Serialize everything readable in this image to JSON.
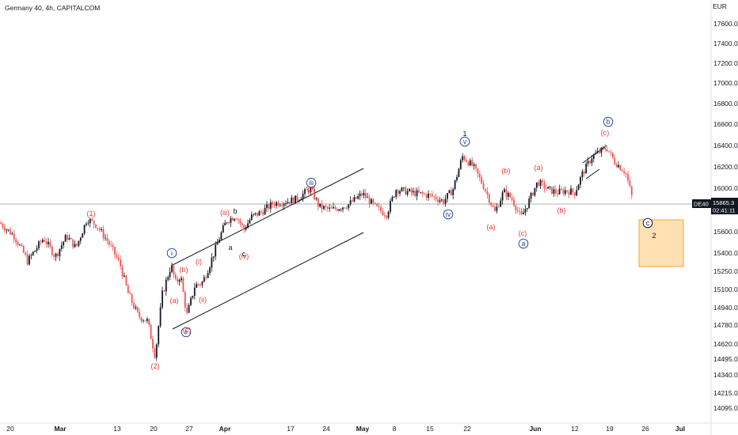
{
  "header": {
    "title": "Germany 40, 4h, CAPITALCOM"
  },
  "chart_data": {
    "type": "candlestick",
    "title": "Germany 40, 4h, CAPITALCOM",
    "symbol": "DE40",
    "currency": "EUR",
    "grid": false,
    "colors": {
      "up": "#131722",
      "down": "#ef5350",
      "wave_red": "#e53935",
      "wave_blue": "#2a4c9c",
      "wave_black": "#131722",
      "price_badge": "#131722",
      "target_box_fill": "#ffe0b2",
      "target_box_stroke": "#f7a233"
    },
    "ylim": [
      13990,
      17730
    ],
    "y_ticks": [
      "17600.0",
      "17400.0",
      "17200.0",
      "17000.0",
      "16800.0",
      "16600.0",
      "16400.0",
      "16200.0",
      "16000.0",
      "15600.0",
      "15400.0",
      "15250.0",
      "15100.0",
      "14940.0",
      "14780.0",
      "14620.0",
      "14495.0",
      "14340.0",
      "14215.0",
      "14095.0"
    ],
    "x_ticks": [
      "20",
      "Mar",
      "13",
      "20",
      "27",
      "Apr",
      "17",
      "24",
      "May",
      "8",
      "15",
      "22",
      "Jun",
      "12",
      "19",
      "26",
      "Jul"
    ],
    "last_price": {
      "label": "DE40",
      "value": "15865.3",
      "countdown": "02:41:11"
    },
    "anchors": [
      [
        0,
        15680
      ],
      [
        18,
        15560
      ],
      [
        35,
        15330
      ],
      [
        55,
        15540
      ],
      [
        70,
        15370
      ],
      [
        84,
        15560
      ],
      [
        96,
        15450
      ],
      [
        110,
        15720
      ],
      [
        122,
        15660
      ],
      [
        136,
        15510
      ],
      [
        152,
        15300
      ],
      [
        162,
        15060
      ],
      [
        175,
        14860
      ],
      [
        186,
        14820
      ],
      [
        196,
        14520
      ],
      [
        205,
        15060
      ],
      [
        216,
        15300
      ],
      [
        222,
        15150
      ],
      [
        228,
        15220
      ],
      [
        236,
        14870
      ],
      [
        246,
        15130
      ],
      [
        256,
        15160
      ],
      [
        268,
        15360
      ],
      [
        278,
        15560
      ],
      [
        286,
        15700
      ],
      [
        298,
        15750
      ],
      [
        308,
        15620
      ],
      [
        318,
        15740
      ],
      [
        330,
        15780
      ],
      [
        345,
        15860
      ],
      [
        362,
        15880
      ],
      [
        375,
        15900
      ],
      [
        392,
        16000
      ],
      [
        403,
        15830
      ],
      [
        418,
        15800
      ],
      [
        440,
        15850
      ],
      [
        458,
        15950
      ],
      [
        475,
        15820
      ],
      [
        488,
        15760
      ],
      [
        500,
        15990
      ],
      [
        520,
        15960
      ],
      [
        545,
        15930
      ],
      [
        560,
        15880
      ],
      [
        572,
        15990
      ],
      [
        584,
        16300
      ],
      [
        598,
        16200
      ],
      [
        612,
        16000
      ],
      [
        625,
        15780
      ],
      [
        636,
        15970
      ],
      [
        646,
        15910
      ],
      [
        658,
        15730
      ],
      [
        666,
        15850
      ],
      [
        679,
        16060
      ],
      [
        692,
        15990
      ],
      [
        704,
        15960
      ],
      [
        715,
        15980
      ],
      [
        726,
        15960
      ],
      [
        735,
        16130
      ],
      [
        748,
        16300
      ],
      [
        766,
        16380
      ],
      [
        776,
        16250
      ],
      [
        790,
        16150
      ],
      [
        800,
        15865
      ]
    ],
    "target_box": {
      "price_top": 15700,
      "price_bottom": 15280,
      "x_start_label": "26"
    },
    "wave_labels": [
      {
        "text": "(1)",
        "color": "red"
      },
      {
        "text": "(2)",
        "color": "red"
      },
      {
        "text": "i",
        "color": "blue",
        "circled": true
      },
      {
        "text": "ii",
        "color": "blue",
        "circled": true
      },
      {
        "text": "(a)",
        "color": "red"
      },
      {
        "text": "(b)",
        "color": "red"
      },
      {
        "text": "(c)",
        "color": "red"
      },
      {
        "text": "(i)",
        "color": "red"
      },
      {
        "text": "(ii)",
        "color": "red"
      },
      {
        "text": "(iii)",
        "color": "red"
      },
      {
        "text": "(iv)",
        "color": "red"
      },
      {
        "text": "(v)",
        "color": "red"
      },
      {
        "text": "a",
        "color": "black"
      },
      {
        "text": "b",
        "color": "black"
      },
      {
        "text": "c",
        "color": "black"
      },
      {
        "text": "iii",
        "color": "blue",
        "circled": true
      },
      {
        "text": "iv",
        "color": "blue",
        "circled": true
      },
      {
        "text": "v",
        "color": "blue",
        "circled": true
      },
      {
        "text": "1",
        "color": "black"
      },
      {
        "text": "(a)",
        "color": "red"
      },
      {
        "text": "(b)",
        "color": "red"
      },
      {
        "text": "(c)",
        "color": "red"
      },
      {
        "text": "a",
        "color": "blue",
        "circled": true
      },
      {
        "text": "(a)",
        "color": "red"
      },
      {
        "text": "(b)",
        "color": "red"
      },
      {
        "text": "(c)",
        "color": "red"
      },
      {
        "text": "b",
        "color": "blue",
        "circled": true
      },
      {
        "text": "c",
        "color": "black",
        "circled": true
      },
      {
        "text": "2",
        "color": "black"
      }
    ]
  }
}
